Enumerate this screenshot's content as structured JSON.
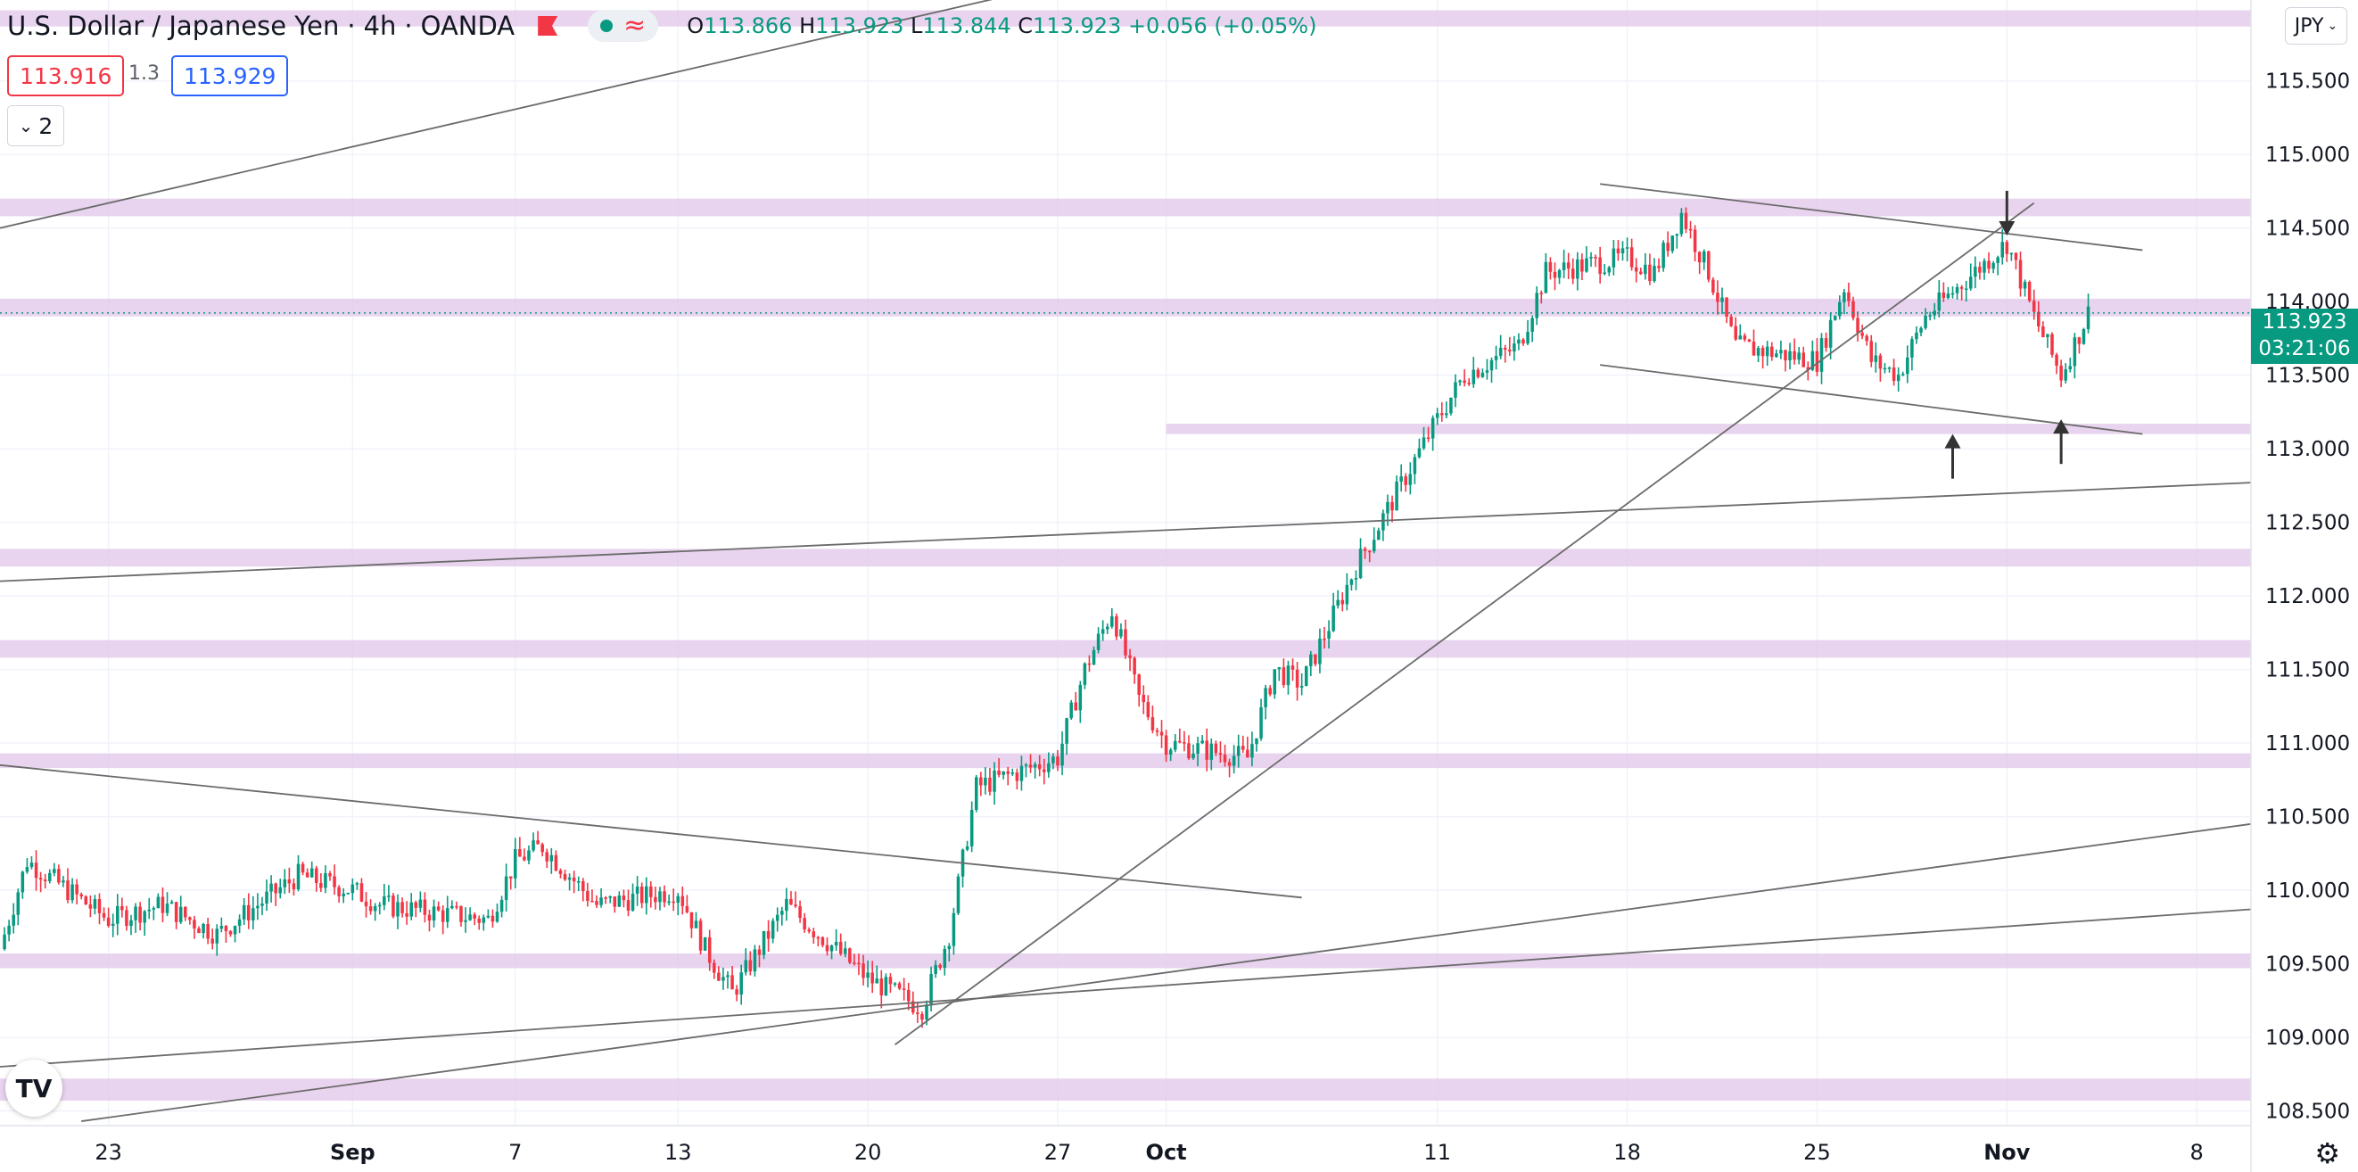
{
  "header": {
    "title": "U.S. Dollar / Japanese Yen",
    "interval": "4h",
    "source": "OANDA",
    "open_label": "O",
    "open": "113.866",
    "high_label": "H",
    "high": "113.923",
    "low_label": "L",
    "low": "113.844",
    "close_label": "C",
    "close": "113.923",
    "change": "+0.056 (+0.05%)",
    "status_icon": "market-open-dot",
    "replay_icon": "waves-icon"
  },
  "trade": {
    "sell_price": "113.916",
    "spread": "1.3",
    "buy_price": "113.929"
  },
  "legend_toggle": {
    "count": "2"
  },
  "currency_button": "JPY",
  "last_price": {
    "price": "113.923",
    "countdown": "03:21:06"
  },
  "logo_text": "TV",
  "colors": {
    "up": "#089981",
    "down": "#f23645",
    "zone": "#e1c6e9",
    "line": "#6b6b6b"
  },
  "chart_data": {
    "type": "candlestick",
    "symbol": "USDJPY",
    "timeframe": "4h",
    "price_axis": {
      "ylim": [
        108.4,
        116.05
      ],
      "ticks": [
        "115.500",
        "115.000",
        "114.500",
        "114.000",
        "113.500",
        "113.000",
        "112.500",
        "112.000",
        "111.500",
        "111.000",
        "110.500",
        "110.000",
        "109.500",
        "109.000",
        "108.500"
      ]
    },
    "time_axis": {
      "xlim": [
        "2021-08-19",
        "2021-11-10"
      ],
      "ticks": [
        {
          "label": "23",
          "date": "2021-08-23"
        },
        {
          "label": "Sep",
          "date": "2021-09-01"
        },
        {
          "label": "7",
          "date": "2021-09-07"
        },
        {
          "label": "13",
          "date": "2021-09-13"
        },
        {
          "label": "20",
          "date": "2021-09-20"
        },
        {
          "label": "27",
          "date": "2021-09-27"
        },
        {
          "label": "Oct",
          "date": "2021-10-01"
        },
        {
          "label": "11",
          "date": "2021-10-11"
        },
        {
          "label": "18",
          "date": "2021-10-18"
        },
        {
          "label": "25",
          "date": "2021-10-25"
        },
        {
          "label": "Nov",
          "date": "2021-11-01"
        },
        {
          "label": "8",
          "date": "2021-11-08"
        }
      ]
    },
    "price_path": [
      {
        "date": "2021-08-19",
        "close": 109.6
      },
      {
        "date": "2021-08-20",
        "close": 110.2
      },
      {
        "date": "2021-08-23",
        "close": 109.8
      },
      {
        "date": "2021-08-25",
        "close": 109.9
      },
      {
        "date": "2021-08-27",
        "close": 109.7
      },
      {
        "date": "2021-08-30",
        "close": 110.1
      },
      {
        "date": "2021-09-01",
        "close": 110.0
      },
      {
        "date": "2021-09-02",
        "close": 109.9
      },
      {
        "date": "2021-09-06",
        "close": 109.8
      },
      {
        "date": "2021-09-07",
        "close": 110.2
      },
      {
        "date": "2021-09-08",
        "close": 110.3
      },
      {
        "date": "2021-09-10",
        "close": 109.9
      },
      {
        "date": "2021-09-13",
        "close": 110.0
      },
      {
        "date": "2021-09-14",
        "close": 109.6
      },
      {
        "date": "2021-09-15",
        "close": 109.3
      },
      {
        "date": "2021-09-17",
        "close": 109.9
      },
      {
        "date": "2021-09-20",
        "close": 109.4
      },
      {
        "date": "2021-09-22",
        "close": 109.2
      },
      {
        "date": "2021-09-23",
        "close": 109.7
      },
      {
        "date": "2021-09-24",
        "close": 110.7
      },
      {
        "date": "2021-09-27",
        "close": 110.9
      },
      {
        "date": "2021-09-28",
        "close": 111.5
      },
      {
        "date": "2021-09-29",
        "close": 111.9
      },
      {
        "date": "2021-09-30",
        "close": 111.3
      },
      {
        "date": "2021-10-01",
        "close": 111.0
      },
      {
        "date": "2021-10-04",
        "close": 110.9
      },
      {
        "date": "2021-10-05",
        "close": 111.5
      },
      {
        "date": "2021-10-06",
        "close": 111.4
      },
      {
        "date": "2021-10-08",
        "close": 112.2
      },
      {
        "date": "2021-10-11",
        "close": 113.2
      },
      {
        "date": "2021-10-12",
        "close": 113.5
      },
      {
        "date": "2021-10-14",
        "close": 113.7
      },
      {
        "date": "2021-10-15",
        "close": 114.2
      },
      {
        "date": "2021-10-18",
        "close": 114.3
      },
      {
        "date": "2021-10-19",
        "close": 114.2
      },
      {
        "date": "2021-10-20",
        "close": 114.6
      },
      {
        "date": "2021-10-21",
        "close": 114.2
      },
      {
        "date": "2021-10-22",
        "close": 113.7
      },
      {
        "date": "2021-10-25",
        "close": 113.6
      },
      {
        "date": "2021-10-26",
        "close": 114.1
      },
      {
        "date": "2021-10-27",
        "close": 113.6
      },
      {
        "date": "2021-10-28",
        "close": 113.5
      },
      {
        "date": "2021-10-29",
        "close": 113.9
      },
      {
        "date": "2021-11-01",
        "close": 114.4
      },
      {
        "date": "2021-11-02",
        "close": 113.9
      },
      {
        "date": "2021-11-03",
        "close": 113.5
      },
      {
        "date": "2021-11-04",
        "close": 113.923
      }
    ],
    "zones": [
      {
        "from": 115.87,
        "to": 115.98
      },
      {
        "from": 114.58,
        "to": 114.7
      },
      {
        "from": 113.9,
        "to": 114.02
      },
      {
        "start": "2021-10-01",
        "from": 113.1,
        "to": 113.17
      },
      {
        "from": 112.2,
        "to": 112.32
      },
      {
        "from": 111.58,
        "to": 111.7
      },
      {
        "from": 110.83,
        "to": 110.93
      },
      {
        "from": 109.47,
        "to": 109.57
      },
      {
        "from": 108.57,
        "to": 108.72
      }
    ],
    "trend_lines": [
      {
        "from": {
          "date": "2021-08-19",
          "price": 114.5
        },
        "to": {
          "date": "2021-09-28",
          "price": 116.2
        }
      },
      {
        "from": {
          "date": "2021-08-19",
          "price": 112.1
        },
        "to": {
          "date": "2021-11-10",
          "price": 112.77
        }
      },
      {
        "from": {
          "date": "2021-08-19",
          "price": 110.85
        },
        "to": {
          "date": "2021-10-06",
          "price": 109.95
        }
      },
      {
        "from": {
          "date": "2021-08-19",
          "price": 108.8
        },
        "to": {
          "date": "2021-11-10",
          "price": 109.87
        }
      },
      {
        "from": {
          "date": "2021-08-22",
          "price": 108.43
        },
        "to": {
          "date": "2021-11-10",
          "price": 110.45
        }
      },
      {
        "from": {
          "date": "2021-09-21",
          "price": 108.95
        },
        "to": {
          "date": "2021-11-02",
          "price": 114.67
        }
      },
      {
        "from": {
          "date": "2021-10-17",
          "price": 114.8
        },
        "to": {
          "date": "2021-11-06",
          "price": 114.35
        }
      },
      {
        "from": {
          "date": "2021-10-17",
          "price": 113.57
        },
        "to": {
          "date": "2021-11-06",
          "price": 113.1
        }
      }
    ],
    "arrows": [
      {
        "date": "2021-11-01",
        "price": 114.45,
        "direction": "down"
      },
      {
        "date": "2021-10-30",
        "price": 113.1,
        "direction": "up"
      },
      {
        "date": "2021-11-03",
        "price": 113.2,
        "direction": "up"
      }
    ],
    "last_price": 113.923
  }
}
